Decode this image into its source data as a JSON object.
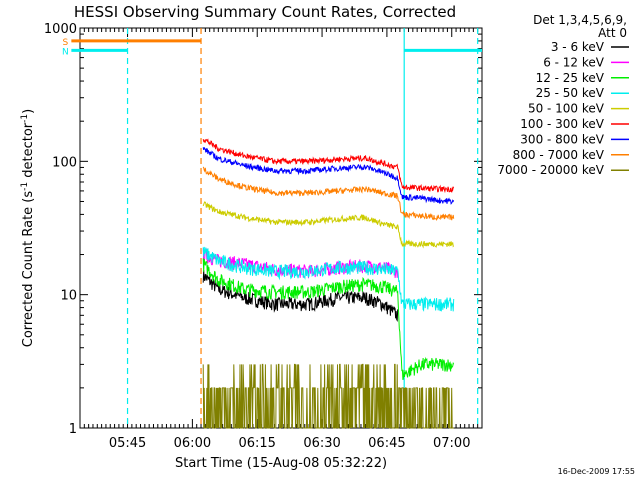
{
  "chart_data": {
    "type": "line",
    "title": "HESSI Observing Summary Count Rates, Corrected",
    "xlabel": "Start Time (15-Aug-08 05:32:22)",
    "ylabel_parts": [
      "Corrected Count Rate (s",
      "-1",
      " detector",
      "-1",
      ")"
    ],
    "y_scale": "log",
    "ylim": [
      1,
      1000
    ],
    "y_ticks": [
      {
        "value": 1,
        "label": "1"
      },
      {
        "value": 10,
        "label": "10"
      },
      {
        "value": 100,
        "label": "100"
      },
      {
        "value": 1000,
        "label": "1000"
      }
    ],
    "x_range_min": [
      2.0,
      95.0
    ],
    "x_ticks": [
      {
        "min": 13.0,
        "label": "05:45"
      },
      {
        "min": 28.0,
        "label": "06:00"
      },
      {
        "min": 43.0,
        "label": "06:15"
      },
      {
        "min": 58.0,
        "label": "06:30"
      },
      {
        "min": 73.0,
        "label": "06:45"
      },
      {
        "min": 88.0,
        "label": "07:00"
      }
    ],
    "legend_header": [
      "Det 1,3,4,5,6,9,",
      "Att 0"
    ],
    "series": [
      {
        "name": "3 - 6 keV",
        "color": "#000000",
        "x": [
          30.5,
          34,
          40,
          47,
          55,
          62,
          68,
          72,
          75.5
        ],
        "y": [
          14,
          11,
          9.5,
          8.5,
          8.5,
          9.5,
          9.5,
          8.5,
          7
        ]
      },
      {
        "name": "6 - 12 keV",
        "color": "#ff00ff",
        "x": [
          30.5,
          34,
          40,
          47,
          55,
          62,
          68,
          72,
          75.5
        ],
        "y": [
          20,
          18,
          17,
          15.5,
          15,
          16,
          16.5,
          16,
          15
        ]
      },
      {
        "name": "12 - 25 keV",
        "color": "#00ee00",
        "x": [
          30.5,
          34,
          40,
          47,
          55,
          62,
          68,
          72,
          75.5,
          76.5,
          81,
          85,
          88.5
        ],
        "y": [
          17,
          13,
          11,
          10.5,
          10.5,
          11.5,
          12,
          11.5,
          10.5,
          2.5,
          3,
          3,
          3
        ]
      },
      {
        "name": "25 - 50 keV",
        "color": "#00eeee",
        "x": [
          30.5,
          34,
          40,
          47,
          55,
          62,
          68,
          72,
          75.5,
          76.5,
          81,
          85,
          88.5
        ],
        "y": [
          21,
          18,
          16,
          15,
          15,
          16,
          16,
          15.5,
          15,
          8.5,
          8.5,
          8.5,
          8.5
        ]
      },
      {
        "name": "50 - 100 keV",
        "color": "#cccc00",
        "x": [
          30.5,
          34,
          40,
          47,
          55,
          62,
          68,
          72,
          75.5,
          76.5,
          81,
          85,
          88.5
        ],
        "y": [
          48,
          42,
          38,
          35,
          35,
          37,
          38,
          34,
          32,
          24,
          24,
          24,
          24
        ]
      },
      {
        "name": "100 - 300 keV",
        "color": "#ff0000",
        "x": [
          30.5,
          34,
          40,
          47,
          55,
          62,
          68,
          72,
          75.5,
          76.5,
          81,
          85,
          88.5
        ],
        "y": [
          148,
          125,
          110,
          100,
          100,
          104,
          106,
          97,
          90,
          64,
          63,
          62,
          62
        ]
      },
      {
        "name": "300 - 800 keV",
        "color": "#0000ff",
        "x": [
          30.5,
          34,
          40,
          47,
          55,
          62,
          68,
          72,
          75.5,
          76.5,
          81,
          85,
          88.5
        ],
        "y": [
          125,
          105,
          93,
          85,
          85,
          89,
          91,
          83,
          75,
          54,
          53,
          51,
          50
        ]
      },
      {
        "name": "800 - 7000 keV",
        "color": "#ff7f00",
        "x": [
          30.5,
          34,
          40,
          47,
          55,
          62,
          68,
          72,
          75.5,
          76.5,
          81,
          85,
          88.5
        ],
        "y": [
          88,
          74,
          64,
          58,
          58,
          60,
          62,
          58,
          55,
          40,
          39,
          38,
          38
        ]
      },
      {
        "name": "7000 - 20000 keV",
        "color": "#808000",
        "x": [
          30.5,
          34,
          40,
          47,
          55,
          62,
          68,
          72,
          75.5,
          76.5,
          81,
          85,
          88.5
        ],
        "y": [
          2,
          1.5,
          1.6,
          1.4,
          1.5,
          1.8,
          2,
          1.6,
          1.5,
          1.5,
          1.5,
          1.5,
          1.5
        ]
      }
    ],
    "flags": [
      {
        "label": "S",
        "color": "#ff7f00",
        "x": [
          0.0,
          30.0
        ],
        "value": 800
      },
      {
        "label": "N",
        "color": "#00eeee",
        "x": [
          0.0,
          13.0
        ],
        "value": 680
      },
      {
        "label": "",
        "color": "#00eeee",
        "x": [
          77.0,
          95.0
        ],
        "value": 680
      }
    ],
    "vlines": [
      {
        "x": 13.0,
        "color": "#00eeee",
        "dashed": true
      },
      {
        "x": 30.0,
        "color": "#ff7f00",
        "dashed": true
      },
      {
        "x": 77.0,
        "color": "#00eeee",
        "dashed": false
      },
      {
        "x": 94.0,
        "color": "#00eeee",
        "dashed": true
      }
    ],
    "timestamp": "16-Dec-2009 17:55"
  }
}
